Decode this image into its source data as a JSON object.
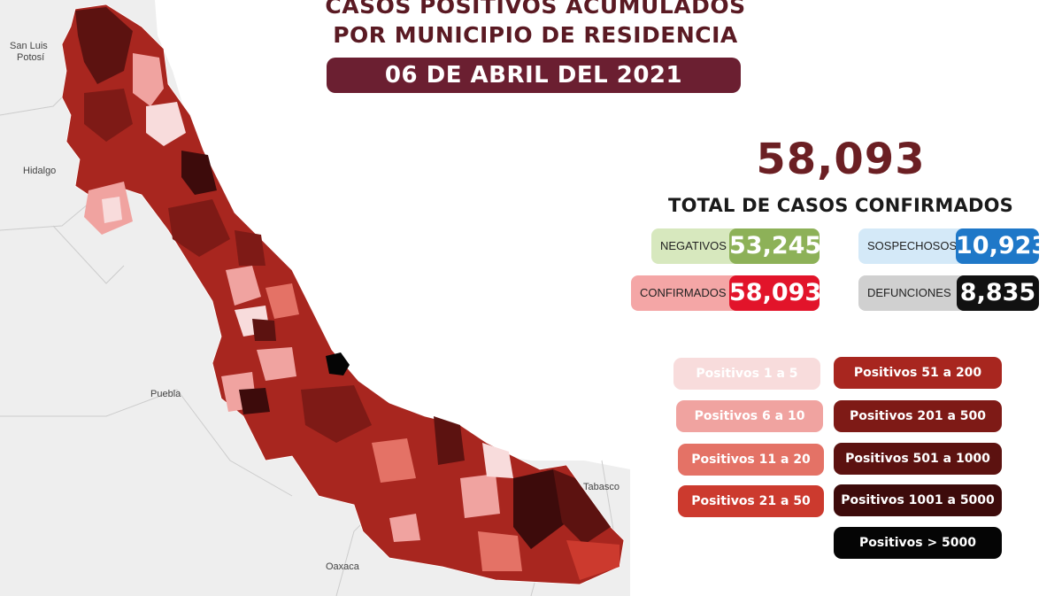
{
  "title": {
    "line1": "CASOS POSITIVOS ACUMULADOS",
    "line2": "POR MUNICIPIO DE RESIDENCIA"
  },
  "date": "06 DE ABRIL DEL 2021",
  "total": {
    "value": "58,093",
    "label": "TOTAL DE CASOS CONFIRMADOS"
  },
  "stats": [
    {
      "label": "NEGATIVOS",
      "value": "53,245",
      "label_color": "#d7e8be",
      "value_color": "#8db158"
    },
    {
      "label": "SOSPECHOSOS",
      "value": "10,923",
      "label_color": "#d4e9f8",
      "value_color": "#1f78c8"
    },
    {
      "label": "CONFIRMADOS",
      "value": "58,093",
      "label_color": "#f4a6a6",
      "value_color": "#e2142a"
    },
    {
      "label": "DEFUNCIONES",
      "value": "8,835",
      "label_color": "#d0d0d0",
      "value_color": "#111111"
    }
  ],
  "legend": [
    {
      "label": "Positivos 1 a 5",
      "color": "#f8dcdc",
      "text_color": "#ffffff"
    },
    {
      "label": "Positivos 6 a 10",
      "color": "#f0a3a0",
      "text_color": "#ffffff"
    },
    {
      "label": "Positivos 11 a 20",
      "color": "#e47266",
      "text_color": "#ffffff"
    },
    {
      "label": "Positivos 21 a 50",
      "color": "#cc3a2e",
      "text_color": "#ffffff"
    },
    {
      "label": "Positivos 51 a 200",
      "color": "#a8261f",
      "text_color": "#ffffff"
    },
    {
      "label": "Positivos 201 a 500",
      "color": "#7e1a16",
      "text_color": "#ffffff"
    },
    {
      "label": "Positivos 501 a 1000",
      "color": "#5c1210",
      "text_color": "#ffffff"
    },
    {
      "label": "Positivos 1001 a 5000",
      "color": "#3d0b0b",
      "text_color": "#ffffff"
    },
    {
      "label": "Positivos > 5000",
      "color": "#050505",
      "text_color": "#ffffff"
    }
  ],
  "neighbors": [
    "San Luis",
    "Potosí",
    "Hidalgo",
    "Puebla",
    "Oaxaca",
    "Tabasco"
  ]
}
